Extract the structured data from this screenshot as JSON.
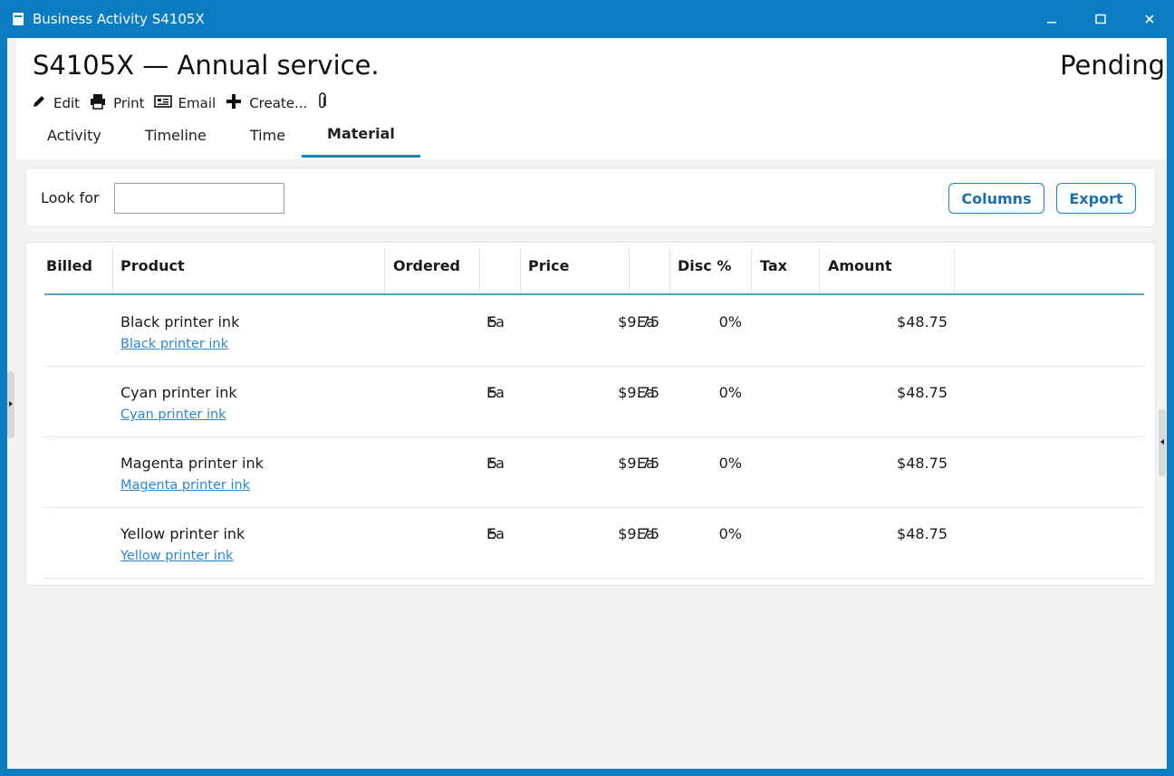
{
  "window": {
    "title": "Business Activity S4105X",
    "titlebar_color": "#0b7cc1",
    "controls": [
      "minimize-icon",
      "maximize-icon",
      "close-icon"
    ]
  },
  "header": {
    "title": "S4105X — Annual service.",
    "status": "Pending"
  },
  "toolbar": {
    "edit": "Edit",
    "print": "Print",
    "email": "Email",
    "create": "Create...",
    "attach_icon": "paperclip-icon"
  },
  "tabs": [
    {
      "label": "Activity",
      "active": false
    },
    {
      "label": "Timeline",
      "active": false
    },
    {
      "label": "Time",
      "active": false
    },
    {
      "label": "Material",
      "active": true
    }
  ],
  "filter": {
    "label": "Look for",
    "value": "",
    "columns_label": "Columns",
    "export_label": "Export"
  },
  "grid": {
    "columns": [
      "Billed",
      "Product",
      "Ordered",
      "Price",
      "Disc %",
      "Tax",
      "Amount"
    ],
    "rows": [
      {
        "billed": "",
        "product": "Black printer ink",
        "product_link": "Black printer ink",
        "ordered": "5",
        "ordered_unit": "Ea",
        "price": "$9.75",
        "price_unit": "Ea",
        "disc": "0%",
        "tax": "",
        "amount": "$48.75"
      },
      {
        "billed": "",
        "product": "Cyan printer ink",
        "product_link": "Cyan printer ink",
        "ordered": "5",
        "ordered_unit": "Ea",
        "price": "$9.75",
        "price_unit": "Ea",
        "disc": "0%",
        "tax": "",
        "amount": "$48.75"
      },
      {
        "billed": "",
        "product": "Magenta printer ink",
        "product_link": "Magenta printer ink",
        "ordered": "5",
        "ordered_unit": "Ea",
        "price": "$9.75",
        "price_unit": "Ea",
        "disc": "0%",
        "tax": "",
        "amount": "$48.75"
      },
      {
        "billed": "",
        "product": "Yellow printer ink",
        "product_link": "Yellow printer ink",
        "ordered": "5",
        "ordered_unit": "Ea",
        "price": "$9.75",
        "price_unit": "Ea",
        "disc": "0%",
        "tax": "",
        "amount": "$48.75"
      }
    ]
  },
  "colors": {
    "accent": "#1a83c8",
    "link": "#2a86cf"
  }
}
